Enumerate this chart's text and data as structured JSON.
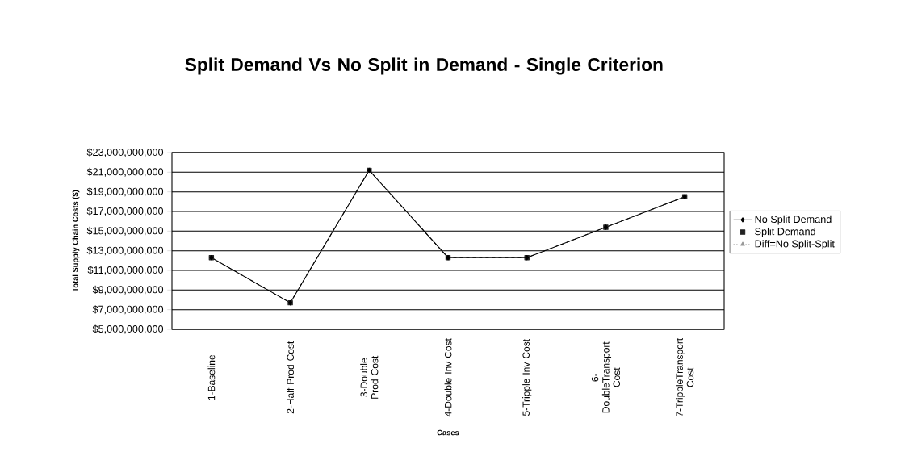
{
  "chart_data": {
    "type": "line",
    "title": "Split Demand Vs No Split in Demand - Single Criterion",
    "xlabel": "Cases",
    "ylabel": "Total Supply Chain Costs ($)",
    "categories": [
      "1-Baseline",
      "2-Half Prod Cost",
      "3-Double Prod Cost",
      "4-Double Inv Cost",
      "5-Tripple Inv Cost",
      "6-DoubleTransport Cost",
      "7-TrippleTransport Cost"
    ],
    "series": [
      {
        "name": "No Split Demand",
        "color": "#000000",
        "marker": "diamond",
        "line_style": "solid",
        "values": [
          12300000000,
          7700000000,
          21200000000,
          12300000000,
          12300000000,
          15400000000,
          18500000000
        ]
      },
      {
        "name": "Split Demand",
        "color": "#222222",
        "marker": "square",
        "line_style": "dashed",
        "values": [
          12300000000,
          7700000000,
          21200000000,
          12300000000,
          12300000000,
          15400000000,
          18500000000
        ]
      },
      {
        "name": "Diff=No Split-Split",
        "color": "#999999",
        "marker": "triangle",
        "line_style": "dotted",
        "values": [
          null,
          null,
          null,
          null,
          null,
          null,
          null
        ]
      }
    ],
    "ylim": [
      5000000000,
      23000000000
    ],
    "yticks": [
      {
        "value": 5000000000,
        "label": "$5,000,000,000"
      },
      {
        "value": 7000000000,
        "label": "$7,000,000,000"
      },
      {
        "value": 9000000000,
        "label": "$9,000,000,000"
      },
      {
        "value": 11000000000,
        "label": "$11,000,000,000"
      },
      {
        "value": 13000000000,
        "label": "$13,000,000,000"
      },
      {
        "value": 15000000000,
        "label": "$15,000,000,000"
      },
      {
        "value": 17000000000,
        "label": "$17,000,000,000"
      },
      {
        "value": 19000000000,
        "label": "$19,000,000,000"
      },
      {
        "value": 21000000000,
        "label": "$21,000,000,000"
      },
      {
        "value": 23000000000,
        "label": "$23,000,000,000"
      }
    ],
    "grid": "y",
    "legend": "right"
  }
}
